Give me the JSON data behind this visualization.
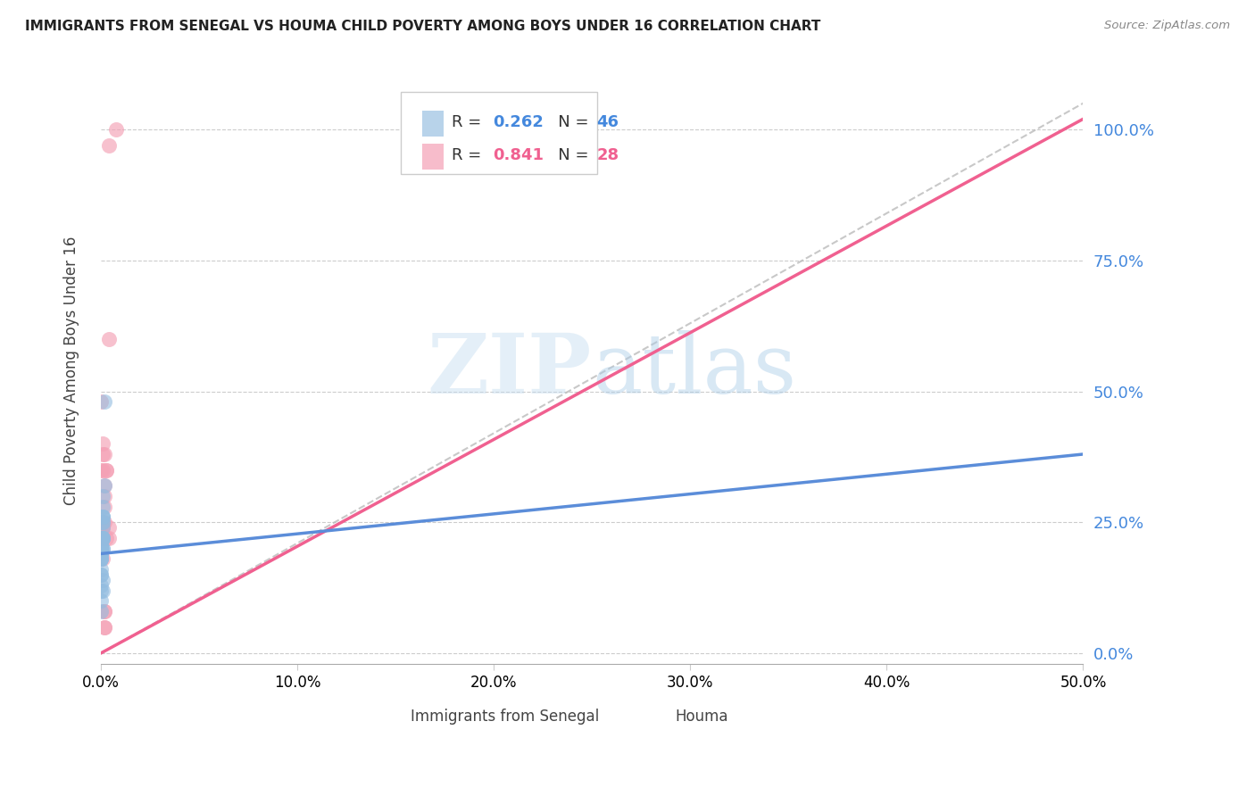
{
  "title": "IMMIGRANTS FROM SENEGAL VS HOUMA CHILD POVERTY AMONG BOYS UNDER 16 CORRELATION CHART",
  "source": "Source: ZipAtlas.com",
  "ylabel": "Child Poverty Among Boys Under 16",
  "xlim": [
    0,
    0.5
  ],
  "ylim": [
    -0.02,
    1.1
  ],
  "watermark_ZIP": "ZIP",
  "watermark_atlas": "atlas",
  "blue_color": "#92bce0",
  "pink_color": "#f4a0b5",
  "blue_line_color": "#5b8dd9",
  "pink_line_color": "#f06090",
  "legend_blue_R": "0.262",
  "legend_blue_N": "46",
  "legend_pink_R": "0.841",
  "legend_pink_N": "28",
  "senegal_x": [
    0.0,
    0.0,
    0.001,
    0.0,
    0.001,
    0.001,
    0.0,
    0.0,
    0.0,
    0.001,
    0.001,
    0.0,
    0.0,
    0.0,
    0.0,
    0.001,
    0.0,
    0.0,
    0.0,
    0.001,
    0.0,
    0.0,
    0.0,
    0.001,
    0.001,
    0.002,
    0.002,
    0.001,
    0.001,
    0.0,
    0.0,
    0.001,
    0.0,
    0.0,
    0.0,
    0.001,
    0.001,
    0.0,
    0.0,
    0.0,
    0.001,
    0.0,
    0.0,
    0.001,
    0.0,
    0.0
  ],
  "senegal_y": [
    0.2,
    0.2,
    0.22,
    0.21,
    0.25,
    0.24,
    0.18,
    0.19,
    0.19,
    0.22,
    0.2,
    0.21,
    0.18,
    0.2,
    0.22,
    0.25,
    0.22,
    0.21,
    0.2,
    0.26,
    0.19,
    0.21,
    0.22,
    0.3,
    0.28,
    0.32,
    0.48,
    0.2,
    0.26,
    0.18,
    0.19,
    0.22,
    0.18,
    0.19,
    0.2,
    0.22,
    0.26,
    0.12,
    0.13,
    0.15,
    0.14,
    0.1,
    0.08,
    0.12,
    0.15,
    0.16
  ],
  "houma_x": [
    0.0,
    0.001,
    0.0,
    0.001,
    0.001,
    0.002,
    0.002,
    0.002,
    0.002,
    0.001,
    0.001,
    0.001,
    0.003,
    0.003,
    0.004,
    0.004,
    0.003,
    0.002,
    0.004,
    0.004,
    0.002,
    0.002,
    0.001,
    0.002,
    0.002,
    0.001,
    0.001,
    0.008
  ],
  "houma_y": [
    0.48,
    0.38,
    0.35,
    0.4,
    0.35,
    0.3,
    0.28,
    0.38,
    0.32,
    0.22,
    0.22,
    0.24,
    0.35,
    0.35,
    0.22,
    0.24,
    0.22,
    0.25,
    0.6,
    0.97,
    0.05,
    0.08,
    0.24,
    0.08,
    0.05,
    0.18,
    0.25,
    1.0
  ],
  "houma_line_x0": 0.0,
  "houma_line_x1": 0.5,
  "houma_line_y0": 0.0,
  "houma_line_y1": 1.02,
  "senegal_line_x0": 0.0,
  "senegal_line_x1": 0.5,
  "senegal_line_y0": 0.19,
  "senegal_line_y1": 0.38,
  "diag_line_x0": 0.0,
  "diag_line_x1": 0.5,
  "diag_line_y0": 0.0,
  "diag_line_y1": 1.05
}
